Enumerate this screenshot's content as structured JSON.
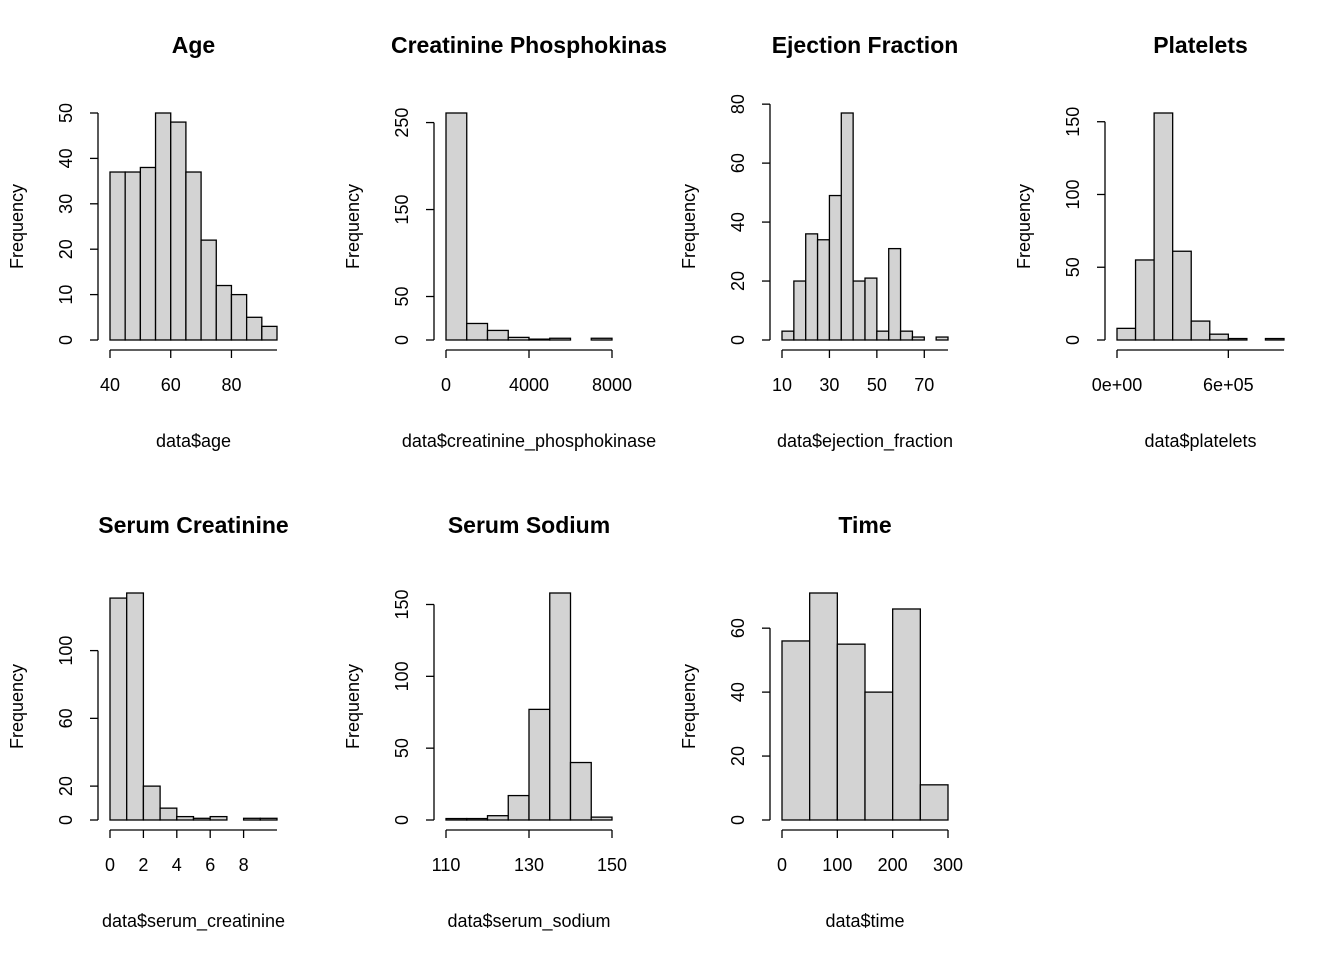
{
  "chart_data": [
    {
      "type": "histogram",
      "title": "Age",
      "xlabel": "data$age",
      "ylabel": "Frequency",
      "color": "#d3d3d3",
      "bins": [
        40,
        45,
        50,
        55,
        60,
        65,
        70,
        75,
        80,
        85,
        90,
        95
      ],
      "values": [
        37,
        37,
        38,
        50,
        48,
        37,
        22,
        12,
        10,
        5,
        3
      ],
      "xlim": [
        40,
        95
      ],
      "xticks": [
        40,
        60,
        80
      ],
      "ylim": [
        0,
        50
      ],
      "yticks": [
        0,
        10,
        20,
        30,
        40,
        50
      ]
    },
    {
      "type": "histogram",
      "title": "Creatinine Phosphokinas",
      "xlabel": "data$creatinine_phosphokinase",
      "ylabel": "Frequency",
      "color": "#d3d3d3",
      "bins": [
        0,
        1000,
        2000,
        3000,
        4000,
        5000,
        6000,
        7000,
        8000
      ],
      "values": [
        261,
        19,
        11,
        3,
        1,
        2,
        0,
        2
      ],
      "xlim": [
        0,
        8000
      ],
      "xticks": [
        0,
        4000,
        8000
      ],
      "ylim": [
        0,
        261
      ],
      "yticks": [
        0,
        50,
        150,
        250
      ]
    },
    {
      "type": "histogram",
      "title": "Ejection Fraction",
      "xlabel": "data$ejection_fraction",
      "ylabel": "Frequency",
      "color": "#d3d3d3",
      "bins": [
        10,
        15,
        20,
        25,
        30,
        35,
        40,
        45,
        50,
        55,
        60,
        65,
        70,
        75,
        80
      ],
      "values": [
        3,
        20,
        36,
        34,
        49,
        77,
        20,
        21,
        3,
        31,
        3,
        1,
        0,
        1
      ],
      "xlim": [
        10,
        80
      ],
      "xticks": [
        10,
        30,
        50,
        70
      ],
      "ylim": [
        0,
        77
      ],
      "yticks": [
        0,
        20,
        40,
        60,
        80
      ]
    },
    {
      "type": "histogram",
      "title": "Platelets",
      "xlabel": "data$platelets",
      "ylabel": "Frequency",
      "color": "#d3d3d3",
      "bins": [
        0,
        100000,
        200000,
        300000,
        400000,
        500000,
        600000,
        700000,
        800000,
        900000
      ],
      "values": [
        8,
        55,
        156,
        61,
        13,
        4,
        1,
        0,
        1
      ],
      "xlim": [
        0,
        900000
      ],
      "xticks": [
        {
          "value": 0,
          "label": "0e+00"
        },
        {
          "value": 600000,
          "label": "6e+05"
        }
      ],
      "ylim": [
        0,
        156
      ],
      "yticks": [
        0,
        50,
        100,
        150
      ]
    },
    {
      "type": "histogram",
      "title": "Serum Creatinine",
      "xlabel": "data$serum_creatinine",
      "ylabel": "Frequency",
      "color": "#d3d3d3",
      "bins": [
        0,
        1,
        2,
        3,
        4,
        5,
        6,
        7,
        8,
        9,
        10
      ],
      "values": [
        131,
        134,
        20,
        7,
        2,
        1,
        2,
        0,
        1,
        1
      ],
      "xlim": [
        0,
        10
      ],
      "xticks": [
        0,
        2,
        4,
        6,
        8
      ],
      "ylim": [
        0,
        134
      ],
      "yticks": [
        0,
        20,
        60,
        100
      ]
    },
    {
      "type": "histogram",
      "title": "Serum Sodium",
      "xlabel": "data$serum_sodium",
      "ylabel": "Frequency",
      "color": "#d3d3d3",
      "bins": [
        110,
        115,
        120,
        125,
        130,
        135,
        140,
        145,
        150
      ],
      "values": [
        1,
        1,
        3,
        17,
        77,
        158,
        40,
        2
      ],
      "xlim": [
        110,
        150
      ],
      "xticks": [
        110,
        130,
        150
      ],
      "ylim": [
        0,
        158
      ],
      "yticks": [
        0,
        50,
        100,
        150
      ]
    },
    {
      "type": "histogram",
      "title": "Time",
      "xlabel": "data$time",
      "ylabel": "Frequency",
      "color": "#d3d3d3",
      "bins": [
        0,
        50,
        100,
        150,
        200,
        250,
        300
      ],
      "values": [
        56,
        71,
        55,
        40,
        66,
        11
      ],
      "xlim": [
        0,
        300
      ],
      "xticks": [
        0,
        100,
        200,
        300
      ],
      "ylim": [
        0,
        71
      ],
      "yticks": [
        0,
        20,
        40,
        60
      ]
    }
  ]
}
